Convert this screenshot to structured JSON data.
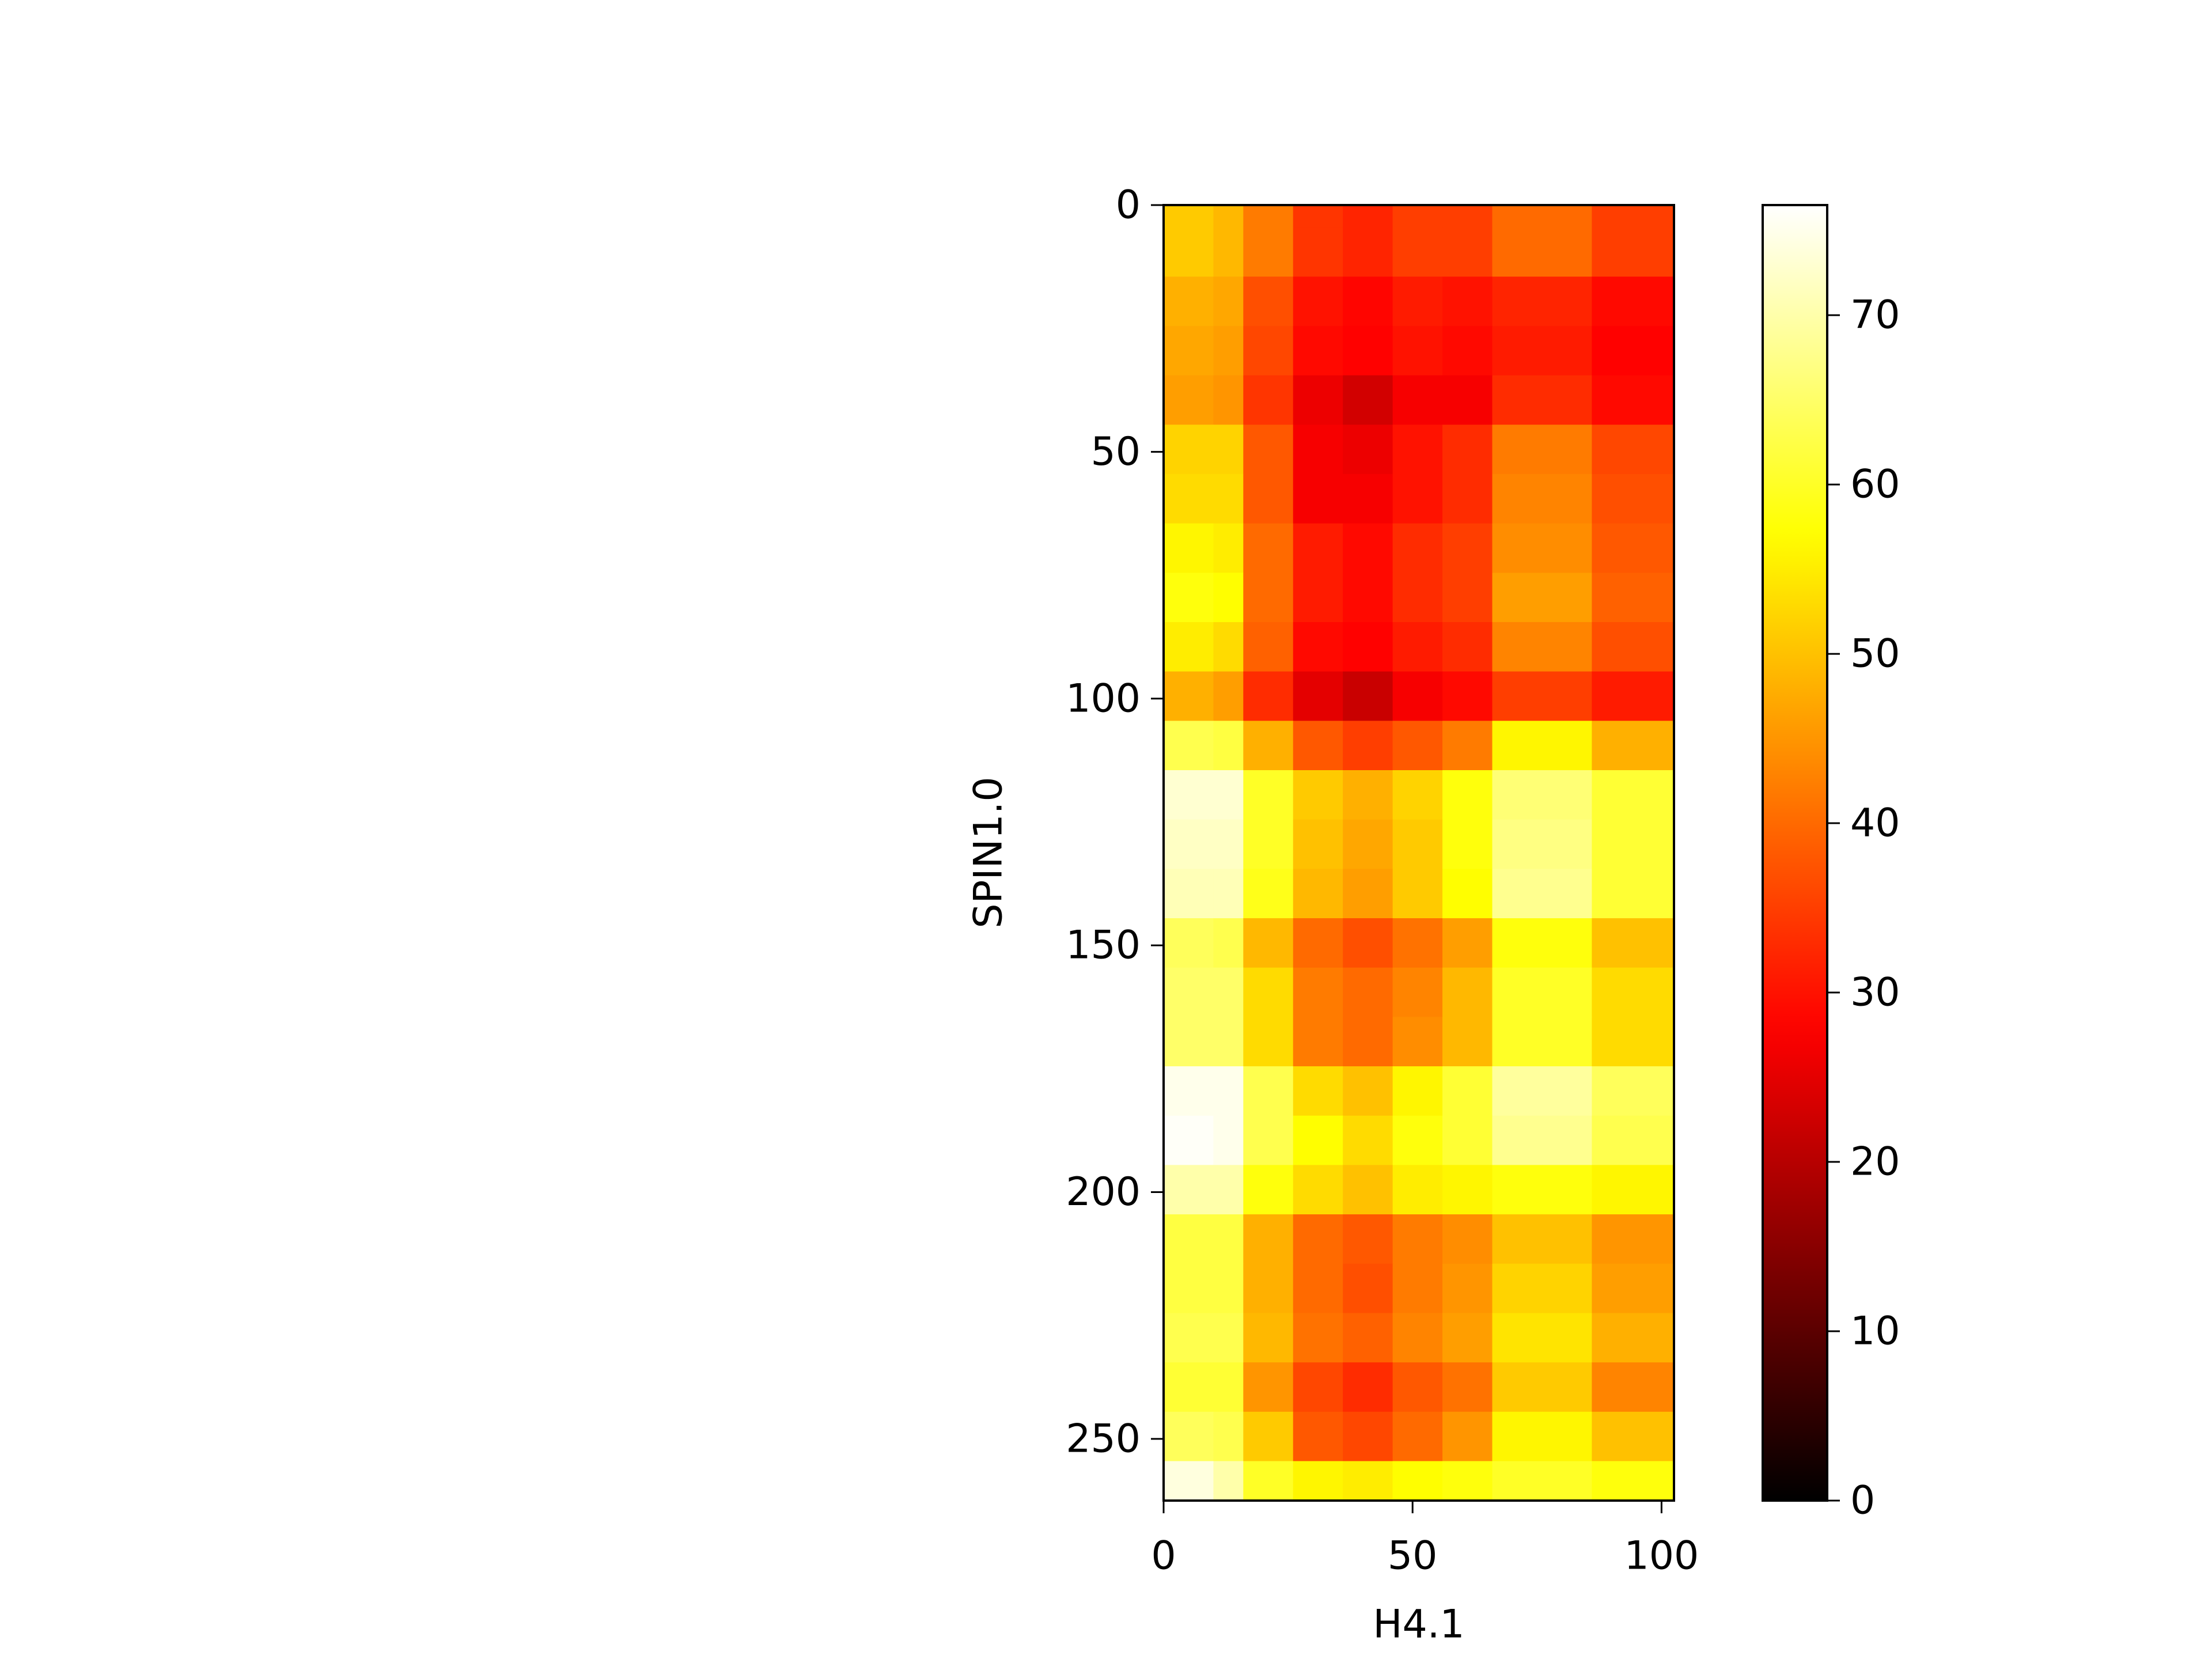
{
  "chart_data": {
    "type": "heatmap",
    "xlabel": "H4.1",
    "ylabel": "SPIN1.0",
    "colormap": "hot",
    "xbins": [
      0,
      10,
      16,
      26,
      36,
      46,
      56,
      66,
      76,
      86,
      102.5
    ],
    "ybins": [
      0,
      4.5,
      14.5,
      24.5,
      34.5,
      44.5,
      54.5,
      64.5,
      74.5,
      84.5,
      94.5,
      104.5,
      114.5,
      124.5,
      134.5,
      144.5,
      154.5,
      164.5,
      174.5,
      184.5,
      194.5,
      204.5,
      214.5,
      224.5,
      234.5,
      244.5,
      254.5,
      262.5
    ],
    "values": [
      [
        51,
        49,
        42,
        34,
        32,
        35,
        35,
        40,
        40,
        35
      ],
      [
        51,
        49,
        42,
        34,
        32,
        35,
        35,
        40,
        40,
        35
      ],
      [
        48,
        47,
        37,
        30,
        28.5,
        31,
        30,
        32,
        32,
        29
      ],
      [
        47,
        46,
        36,
        29,
        28,
        30,
        29,
        31,
        31,
        28
      ],
      [
        46,
        45,
        34,
        26,
        23,
        27,
        27,
        33,
        33,
        29
      ],
      [
        52,
        52,
        38,
        27,
        26,
        30,
        33,
        42,
        42,
        36
      ],
      [
        53,
        53,
        38,
        27,
        27,
        30,
        33,
        43,
        43,
        37
      ],
      [
        56,
        55,
        40,
        31,
        29,
        33,
        35,
        44,
        44,
        38
      ],
      [
        58,
        57,
        40,
        31,
        29,
        33,
        35,
        46,
        46,
        39
      ],
      [
        55,
        53,
        39,
        29,
        28,
        31,
        33,
        43,
        43,
        37
      ],
      [
        48,
        46,
        33,
        25,
        22,
        27,
        29,
        35,
        35,
        31
      ],
      [
        63,
        62,
        48,
        38,
        35,
        38,
        42,
        56,
        56,
        48
      ],
      [
        73,
        73,
        60,
        51,
        48,
        52,
        58,
        66,
        66,
        61
      ],
      [
        72,
        72,
        60,
        50,
        47,
        51,
        58,
        67,
        67,
        61
      ],
      [
        71,
        71,
        59,
        49,
        46,
        51,
        57,
        68,
        68,
        61
      ],
      [
        64,
        63,
        49,
        40,
        37,
        41,
        46,
        58,
        58,
        50
      ],
      [
        65,
        65,
        53,
        42,
        40,
        43,
        49,
        60,
        60,
        53
      ],
      [
        65,
        65,
        53,
        42,
        40,
        44,
        49,
        60,
        60,
        53
      ],
      [
        75,
        75,
        63,
        53,
        50,
        56,
        61,
        69,
        69,
        64
      ],
      [
        76,
        75,
        63,
        57,
        53,
        58,
        61,
        68,
        68,
        63
      ],
      [
        70,
        70,
        58,
        53,
        50,
        55,
        56,
        58,
        58,
        56
      ],
      [
        62,
        62,
        48,
        40,
        38,
        42,
        44,
        50,
        50,
        45
      ],
      [
        62,
        62,
        48,
        40,
        37,
        42,
        45,
        52,
        52,
        46
      ],
      [
        63,
        63,
        49,
        41,
        39,
        43,
        46,
        54,
        54,
        48
      ],
      [
        61,
        61,
        45,
        36,
        33,
        38,
        41,
        51,
        51,
        43
      ],
      [
        64,
        63,
        51,
        38,
        36,
        40,
        45,
        56,
        56,
        50
      ],
      [
        74,
        70,
        60,
        56,
        55,
        57,
        58,
        60,
        60,
        58
      ]
    ],
    "xlim": [
      0,
      102.5
    ],
    "xticks": [
      0,
      50,
      100
    ],
    "ylim": [
      262.5,
      0
    ],
    "yticks": [
      0,
      50,
      100,
      150,
      200,
      250
    ],
    "clim": [
      0,
      76.5
    ],
    "cticks": [
      0,
      10,
      20,
      30,
      40,
      50,
      60,
      70
    ]
  }
}
